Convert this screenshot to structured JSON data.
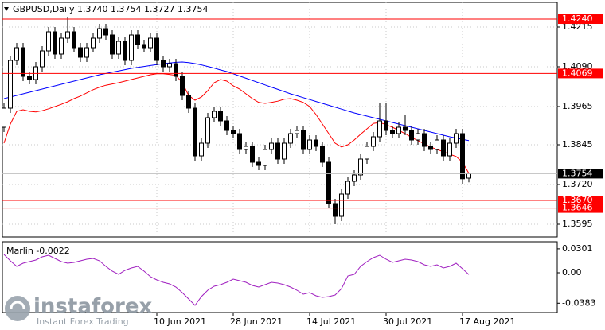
{
  "chart_data": [
    {
      "type": "candlestick",
      "title": "GBPUSD,Daily",
      "quote": [
        "1.3740",
        "1.3754",
        "1.3727",
        "1.3754"
      ],
      "categories": [
        null,
        null,
        null,
        null,
        null,
        null,
        null,
        null,
        null,
        null,
        null,
        null,
        null,
        null,
        null,
        null,
        null,
        null,
        null,
        null,
        null,
        null,
        null,
        null,
        "10 Jun 2021",
        null,
        null,
        null,
        null,
        null,
        null,
        null,
        null,
        null,
        null,
        null,
        "28 Jun 2021",
        null,
        null,
        null,
        null,
        null,
        null,
        null,
        null,
        null,
        null,
        null,
        "14 Jul 2021",
        null,
        null,
        null,
        null,
        null,
        null,
        null,
        null,
        null,
        null,
        null,
        "30 Jul 2021",
        null,
        null,
        null,
        null,
        null,
        null,
        null,
        null,
        null,
        null,
        null,
        "17 Aug 2021",
        null
      ],
      "open": [
        1.39,
        1.396,
        1.411,
        1.415,
        1.406,
        1.405,
        1.409,
        1.414,
        1.42,
        1.413,
        1.418,
        1.42,
        1.415,
        1.412,
        1.415,
        1.418,
        1.421,
        1.419,
        1.413,
        1.417,
        1.411,
        1.419,
        1.416,
        1.415,
        1.418,
        1.411,
        1.409,
        1.41,
        1.406,
        1.4,
        1.396,
        1.381,
        1.385,
        1.393,
        1.395,
        1.392,
        1.389,
        1.388,
        1.383,
        1.384,
        1.379,
        1.378,
        1.383,
        1.385,
        1.38,
        1.385,
        1.388,
        1.389,
        1.383,
        1.386,
        1.384,
        1.379,
        1.366,
        1.362,
        1.369,
        1.373,
        1.375,
        1.38,
        1.384,
        1.387,
        1.392,
        1.389,
        1.388,
        1.39,
        1.389,
        1.386,
        1.388,
        1.384,
        1.383,
        1.386,
        1.381,
        1.385,
        1.388,
        1.374
      ],
      "high": [
        1.3975,
        1.4125,
        1.4165,
        1.4165,
        1.4075,
        1.4105,
        1.4155,
        1.4215,
        1.4215,
        1.4195,
        1.4245,
        1.4215,
        1.4165,
        1.4165,
        1.4195,
        1.4225,
        1.4225,
        1.4205,
        1.4185,
        1.4185,
        1.4205,
        1.4205,
        1.4175,
        1.4195,
        1.4195,
        1.4125,
        1.4115,
        1.4115,
        1.4075,
        1.4015,
        1.3975,
        1.3865,
        1.3945,
        1.3965,
        1.3965,
        1.3935,
        1.3905,
        1.3895,
        1.3855,
        1.3855,
        1.3805,
        1.3845,
        1.3865,
        1.3865,
        1.3865,
        1.3895,
        1.3905,
        1.3905,
        1.3875,
        1.3875,
        1.3855,
        1.3805,
        1.3675,
        1.3705,
        1.3745,
        1.3765,
        1.3815,
        1.3855,
        1.3885,
        1.3975,
        1.3975,
        1.3905,
        1.3915,
        1.394,
        1.3905,
        1.3895,
        1.3895,
        1.3855,
        1.3875,
        1.3875,
        1.3865,
        1.3895,
        1.3895,
        1.3754
      ],
      "low": [
        1.3885,
        1.3945,
        1.4095,
        1.4045,
        1.4035,
        1.4035,
        1.4075,
        1.4125,
        1.4115,
        1.4115,
        1.4165,
        1.4135,
        1.4105,
        1.4105,
        1.4135,
        1.4165,
        1.4175,
        1.4115,
        1.4115,
        1.4095,
        1.4095,
        1.4145,
        1.4135,
        1.4135,
        1.4095,
        1.4075,
        1.4075,
        1.4045,
        1.3985,
        1.3945,
        1.3795,
        1.3795,
        1.3835,
        1.3915,
        1.3905,
        1.3875,
        1.3865,
        1.3815,
        1.3815,
        1.3775,
        1.3765,
        1.3765,
        1.3815,
        1.3785,
        1.3785,
        1.3835,
        1.3865,
        1.3815,
        1.3815,
        1.3825,
        1.3775,
        1.3645,
        1.3595,
        1.3605,
        1.3675,
        1.3715,
        1.3735,
        1.3785,
        1.3825,
        1.3855,
        1.3875,
        1.3865,
        1.3865,
        1.3875,
        1.3845,
        1.3845,
        1.3825,
        1.3815,
        1.3815,
        1.3795,
        1.3795,
        1.3835,
        1.372,
        1.3727
      ],
      "close": [
        1.396,
        1.411,
        1.415,
        1.406,
        1.405,
        1.409,
        1.414,
        1.42,
        1.413,
        1.418,
        1.42,
        1.415,
        1.412,
        1.415,
        1.418,
        1.421,
        1.419,
        1.413,
        1.417,
        1.411,
        1.419,
        1.416,
        1.415,
        1.418,
        1.411,
        1.409,
        1.41,
        1.406,
        1.4,
        1.396,
        1.381,
        1.385,
        1.393,
        1.395,
        1.392,
        1.389,
        1.388,
        1.383,
        1.384,
        1.379,
        1.378,
        1.383,
        1.385,
        1.38,
        1.385,
        1.388,
        1.389,
        1.383,
        1.386,
        1.384,
        1.379,
        1.366,
        1.362,
        1.369,
        1.373,
        1.375,
        1.38,
        1.384,
        1.387,
        1.392,
        1.389,
        1.388,
        1.39,
        1.389,
        1.386,
        1.388,
        1.384,
        1.383,
        1.386,
        1.381,
        1.385,
        1.388,
        1.3738,
        1.3754
      ],
      "up_color": "#ffffff",
      "down_color": "#000000",
      "lines": [
        {
          "color": "#0000ff",
          "values": [
            1.399,
            1.3995,
            1.4,
            1.4005,
            1.401,
            1.4015,
            1.402,
            1.4025,
            1.403,
            1.4035,
            1.404,
            1.4045,
            1.405,
            1.4055,
            1.406,
            1.4065,
            1.4069,
            1.4073,
            1.4077,
            1.4081,
            1.4085,
            1.4088,
            1.4091,
            1.4094,
            1.4097,
            1.41,
            1.4102,
            1.4104,
            1.4105,
            1.4103,
            1.41,
            1.4096,
            1.4091,
            1.4086,
            1.408,
            1.4075,
            1.4068,
            1.4061,
            1.4054,
            1.4047,
            1.404,
            1.4033,
            1.4026,
            1.4019,
            1.4012,
            1.4005,
            1.3999,
            1.3993,
            1.3987,
            1.3981,
            1.3975,
            1.3969,
            1.3963,
            1.3957,
            1.3951,
            1.3945,
            1.394,
            1.3935,
            1.393,
            1.3925,
            1.392,
            1.3915,
            1.391,
            1.3905,
            1.39,
            1.3895,
            1.389,
            1.3885,
            1.388,
            1.3875,
            1.387,
            1.3866,
            1.3862,
            1.3858
          ]
        },
        {
          "color": "#ff0000",
          "values": [
            1.385,
            1.391,
            1.395,
            1.3955,
            1.395,
            1.3948,
            1.3952,
            1.3958,
            1.3965,
            1.3972,
            1.398,
            1.399,
            1.3998,
            1.4008,
            1.4018,
            1.4026,
            1.4032,
            1.4036,
            1.404,
            1.4045,
            1.405,
            1.4055,
            1.406,
            1.4065,
            1.4068,
            1.4068,
            1.4066,
            1.4063,
            1.404,
            1.4,
            1.3985,
            1.3995,
            1.4015,
            1.404,
            1.405,
            1.4045,
            1.403,
            1.402,
            1.4005,
            1.399,
            1.3978,
            1.3975,
            1.3978,
            1.3982,
            1.3988,
            1.399,
            1.3985,
            1.3978,
            1.3965,
            1.394,
            1.391,
            1.388,
            1.385,
            1.3838,
            1.3845,
            1.386,
            1.3878,
            1.3895,
            1.3912,
            1.3915,
            1.3908,
            1.39,
            1.389,
            1.388,
            1.3868,
            1.3858,
            1.3848,
            1.3838,
            1.383,
            1.3823,
            1.3815,
            1.3808,
            1.379,
            1.3755
          ]
        }
      ],
      "levels": {
        "color": "#ff0000",
        "values": [
          {
            "value": 1.424,
            "label": "1.4240"
          },
          1.4069,
          {
            "value": 1.367,
            "label": "1.3670"
          },
          1.3646
        ]
      },
      "current_price": 1.3754,
      "ylim": [
        1.3555,
        1.42925
      ],
      "yticks": [
        1.4215,
        {
          "value": 1.409,
          "label": "1.4090"
        },
        1.3965,
        1.3845,
        {
          "value": 1.372,
          "label": "1.3720"
        },
        1.3595
      ],
      "grid": true
    },
    {
      "type": "line",
      "title": "Marlin -0.0022",
      "color": "#a020c0",
      "values": [
        0.023,
        0.015,
        0.008,
        0.012,
        0.014,
        0.016,
        0.02,
        0.022,
        0.018,
        0.014,
        0.012,
        0.013,
        0.015,
        0.017,
        0.018,
        0.015,
        0.008,
        0.002,
        -0.002,
        0.003,
        0.006,
        0.008,
        0.002,
        -0.005,
        -0.009,
        -0.012,
        -0.014,
        -0.018,
        -0.025,
        -0.033,
        -0.041,
        -0.03,
        -0.022,
        -0.017,
        -0.015,
        -0.012,
        -0.008,
        -0.01,
        -0.012,
        -0.016,
        -0.018,
        -0.015,
        -0.012,
        -0.013,
        -0.015,
        -0.018,
        -0.022,
        -0.027,
        -0.025,
        -0.029,
        -0.031,
        -0.03,
        -0.028,
        -0.02,
        -0.004,
        -0.002,
        0.008,
        0.014,
        0.019,
        0.022,
        0.017,
        0.013,
        0.015,
        0.017,
        0.016,
        0.014,
        0.01,
        0.008,
        0.01,
        0.006,
        0.008,
        0.012,
        0.005,
        -0.0022
      ],
      "ylim": [
        -0.05,
        0.039
      ],
      "yticks": [
        0.0301,
        {
          "value": 0,
          "label": "0.00"
        },
        -0.0383
      ]
    }
  ],
  "watermark": {
    "brand": "instaforex",
    "tagline": "Instant Forex Trading"
  }
}
